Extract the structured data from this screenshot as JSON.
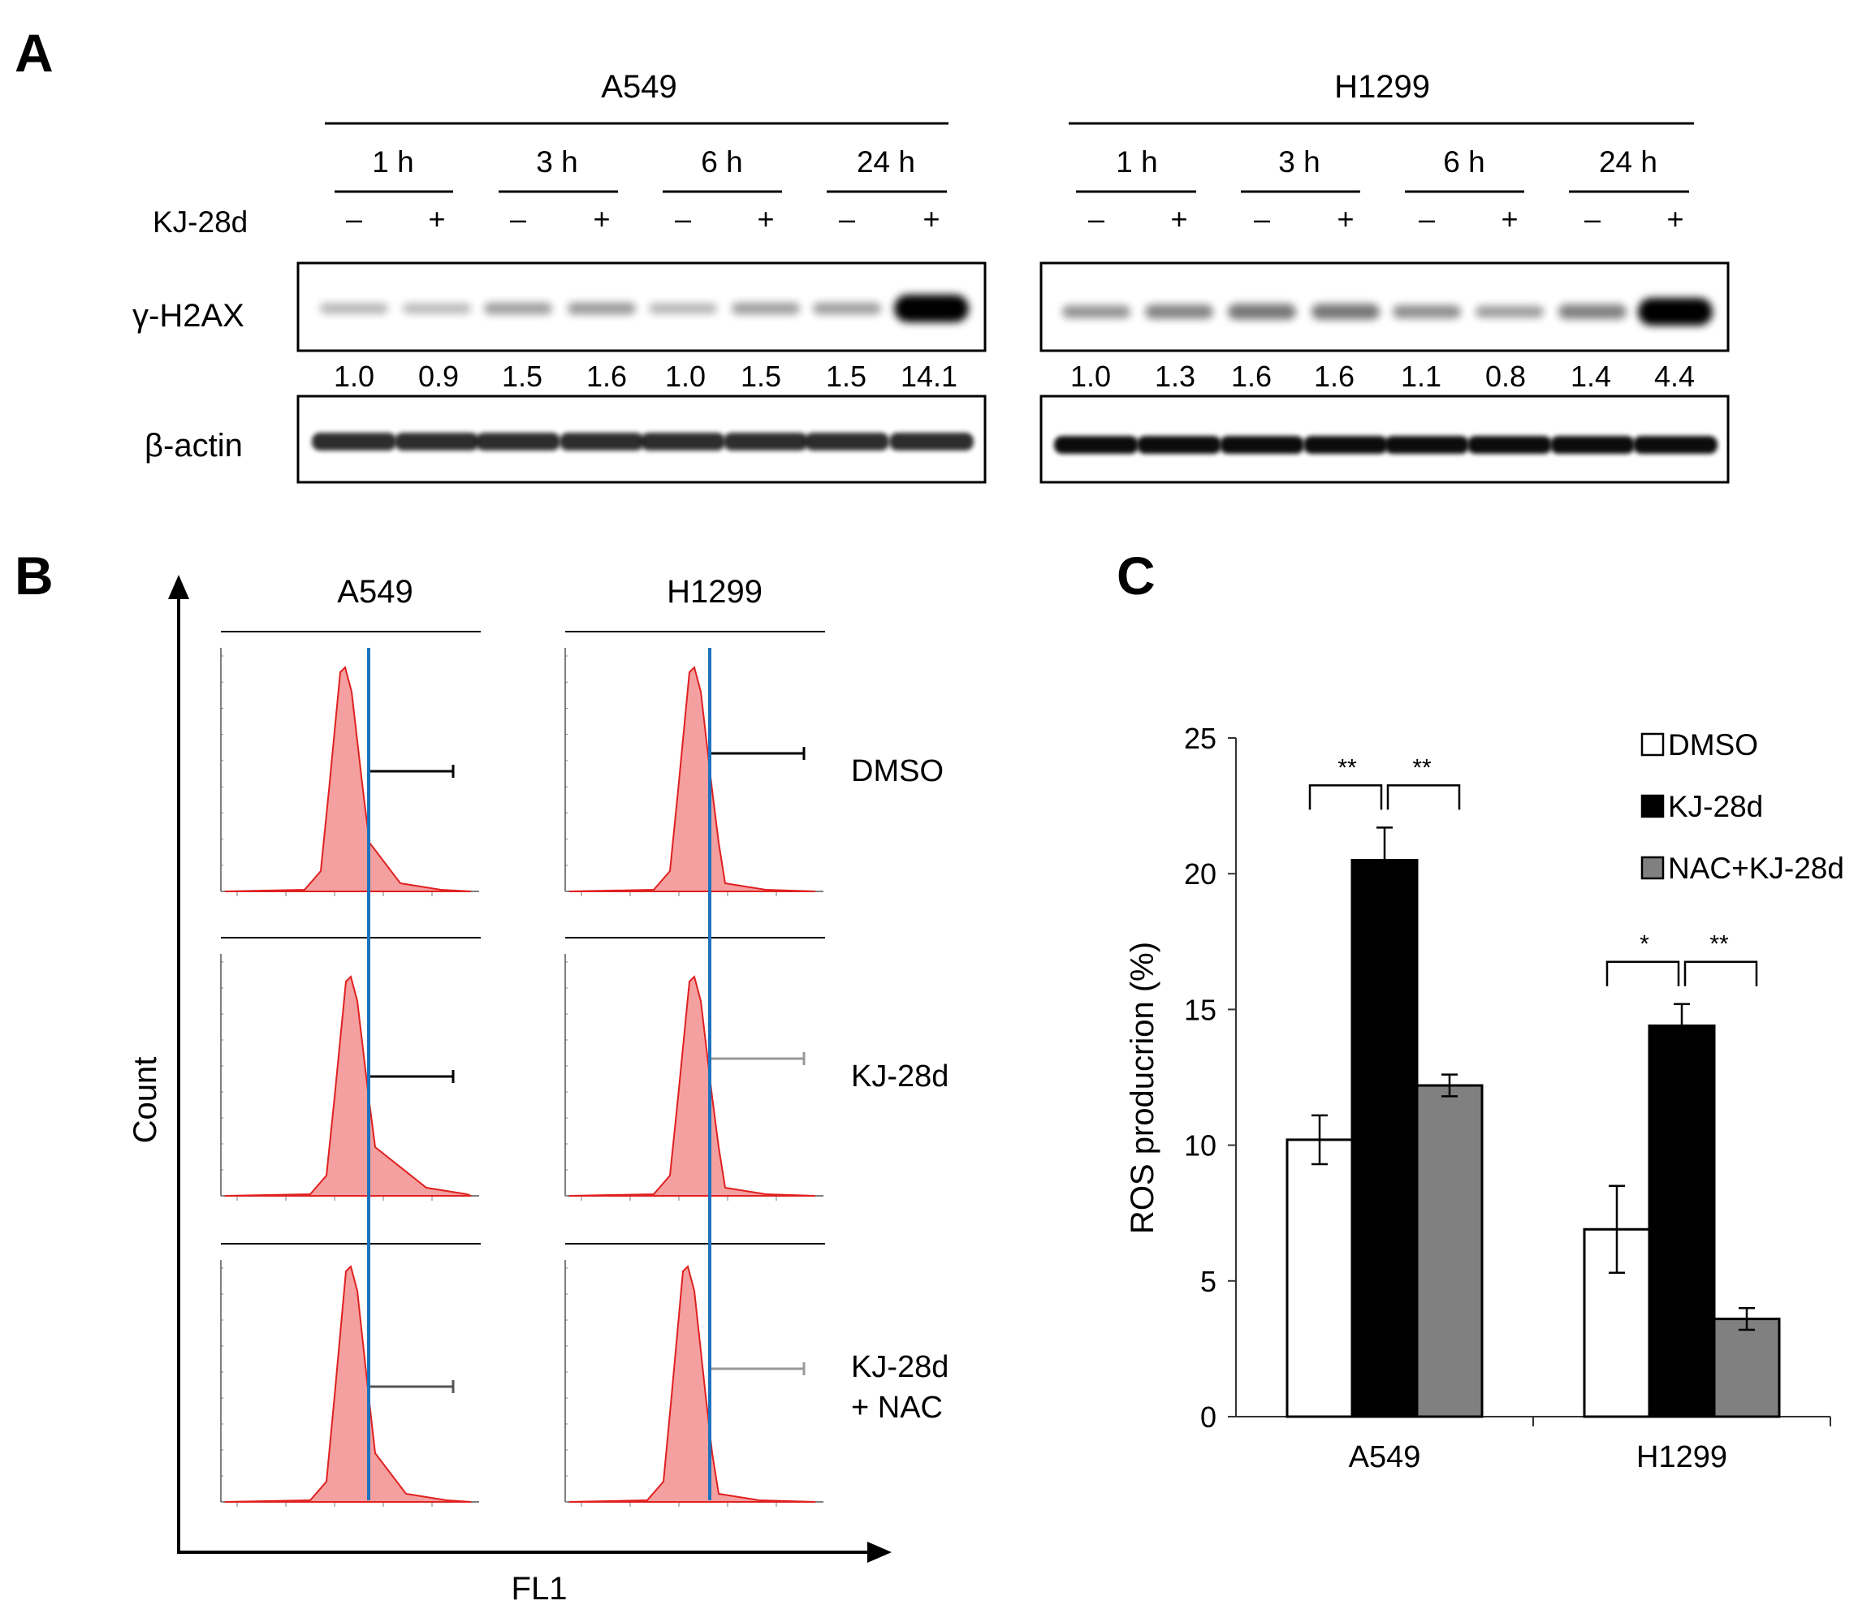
{
  "panels": {
    "a": {
      "letter": "A",
      "kj_label": "KJ-28d",
      "gamma_label": "γ-H2AX",
      "actin_label": "β-actin",
      "minus": "–",
      "plus": "+",
      "blots": [
        {
          "cell_line": "A549",
          "timepoints": [
            "1 h",
            "3 h",
            "6 h",
            "24 h"
          ],
          "treatment": [
            "–",
            "+",
            "–",
            "+",
            "–",
            "+",
            "–",
            "+"
          ],
          "quant": [
            "1.0",
            "0.9",
            "1.5",
            "1.6",
            "1.0",
            "1.5",
            "1.5",
            "14.1"
          ],
          "gamma_intensity": [
            1.0,
            0.9,
            1.5,
            1.6,
            1.0,
            1.5,
            1.5,
            14.1
          ]
        },
        {
          "cell_line": "H1299",
          "timepoints": [
            "1 h",
            "3 h",
            "6 h",
            "24 h"
          ],
          "treatment": [
            "–",
            "+",
            "–",
            "+",
            "–",
            "+",
            "–",
            "+"
          ],
          "quant": [
            "1.0",
            "1.3",
            "1.6",
            "1.6",
            "1.1",
            "0.8",
            "1.4",
            "4.4"
          ],
          "gamma_intensity": [
            1.0,
            1.3,
            1.6,
            1.6,
            1.1,
            0.8,
            1.4,
            4.4
          ]
        }
      ]
    },
    "b": {
      "letter": "B",
      "columns": [
        "A549",
        "H1299"
      ],
      "rows": [
        "DMSO",
        "KJ-28d",
        "KJ-28d\n+ NAC"
      ],
      "row_line1": [
        "DMSO",
        "KJ-28d",
        "KJ-28d"
      ],
      "row_line2": [
        "",
        "",
        "+ NAC"
      ],
      "y_axis": "Count",
      "x_axis": "FL1"
    },
    "c": {
      "letter": "C",
      "significance": [
        {
          "group": "A549",
          "left": "**",
          "right": "**"
        },
        {
          "group": "H1299",
          "left": "*",
          "right": "**"
        }
      ]
    }
  },
  "chart_data": {
    "type": "bar",
    "title": "",
    "xlabel": "",
    "ylabel": "ROS producrion (%)",
    "categories": [
      "A549",
      "H1299"
    ],
    "ylim": [
      0,
      25
    ],
    "yticks": [
      0,
      5,
      10,
      15,
      20,
      25
    ],
    "series": [
      {
        "name": "DMSO",
        "color": "#ffffff",
        "values": [
          10.2,
          6.9
        ],
        "errors": [
          0.9,
          1.6
        ]
      },
      {
        "name": "KJ-28d",
        "color": "#000000",
        "values": [
          20.5,
          14.4
        ],
        "errors": [
          1.2,
          0.8
        ]
      },
      {
        "name": "NAC+KJ-28d",
        "color": "#808080",
        "values": [
          12.2,
          3.6
        ],
        "errors": [
          0.4,
          0.4
        ]
      }
    ],
    "legend": "top-right"
  }
}
